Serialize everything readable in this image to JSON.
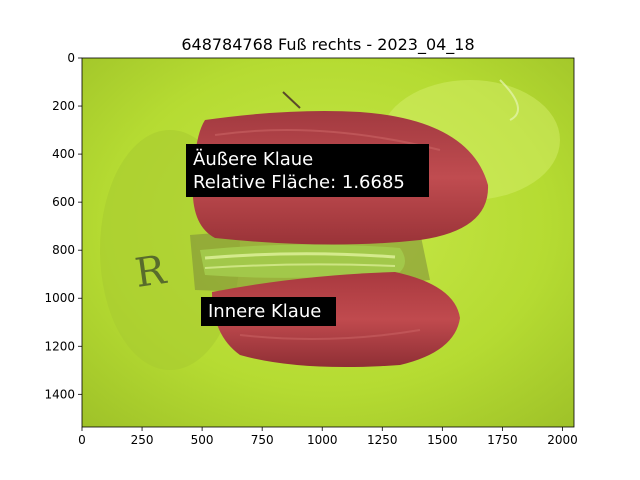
{
  "title": "648784768 Fuß rechts - 2023_04_18",
  "image": {
    "description_colors": {
      "background": "#b8e03a",
      "claw": "#b7464a",
      "claw_dark": "#8f2f35"
    },
    "x_range": [
      0,
      2048
    ],
    "y_range": [
      1536,
      0
    ],
    "x_ticks": [
      0,
      250,
      500,
      750,
      1000,
      1250,
      1500,
      1750,
      2000
    ],
    "y_ticks": [
      0,
      200,
      400,
      600,
      800,
      1000,
      1200,
      1400
    ]
  },
  "annotations": {
    "outer": {
      "line1": "Äußere Klaue",
      "line2": "Relative Fläche: 1.6685"
    },
    "inner": {
      "line1": "Innere Klaue"
    }
  },
  "colors": {
    "label_box": "#000000",
    "label_text": "#ffffff"
  }
}
